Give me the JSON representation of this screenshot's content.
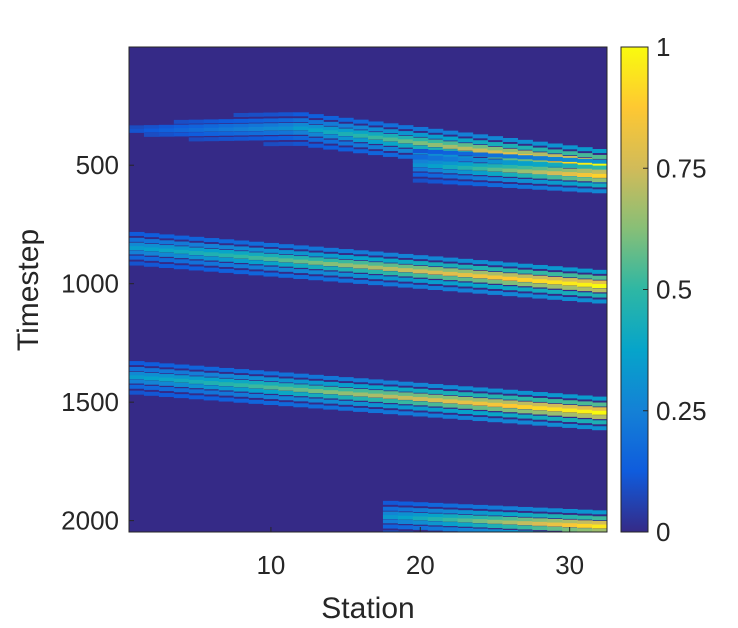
{
  "chart_data": {
    "type": "heatmap",
    "title": "",
    "xlabel": "Station",
    "ylabel": "Timestep",
    "xlim": [
      0.5,
      32.5
    ],
    "ylim": [
      1,
      2048
    ],
    "y_reversed": true,
    "xticks": [
      10,
      20,
      30
    ],
    "yticks": [
      500,
      1000,
      1500,
      2000
    ],
    "grid": false,
    "colormap": "parula",
    "colorbar": {
      "range": [
        0,
        1
      ],
      "ticks": [
        "0",
        "0.25",
        "0.5",
        "0.75",
        "1"
      ],
      "tick_values": [
        0,
        0.25,
        0.5,
        0.75,
        1
      ]
    },
    "background_value": 0.0,
    "stations": 32,
    "timesteps": 2048,
    "bands": [
      {
        "start_station": 1,
        "end_station": 11,
        "timestep_at_start": 355,
        "timestep_at_end": 345,
        "peak_value": 0.3
      },
      {
        "start_station": 12,
        "end_station": 32,
        "timestep_at_start": 345,
        "timestep_at_end": 500,
        "peak_value": 1.0
      },
      {
        "start_station": 20,
        "end_station": 32,
        "timestep_at_start": 500,
        "timestep_at_end": 545,
        "peak_value": 0.9
      },
      {
        "start_station": 1,
        "end_station": 32,
        "timestep_at_start": 850,
        "timestep_at_end": 1010,
        "peak_value": 1.0
      },
      {
        "start_station": 1,
        "end_station": 32,
        "timestep_at_start": 1395,
        "timestep_at_end": 1545,
        "peak_value": 1.0
      },
      {
        "start_station": 18,
        "end_station": 32,
        "timestep_at_start": 1985,
        "timestep_at_end": 2025,
        "peak_value": 0.95
      }
    ]
  }
}
